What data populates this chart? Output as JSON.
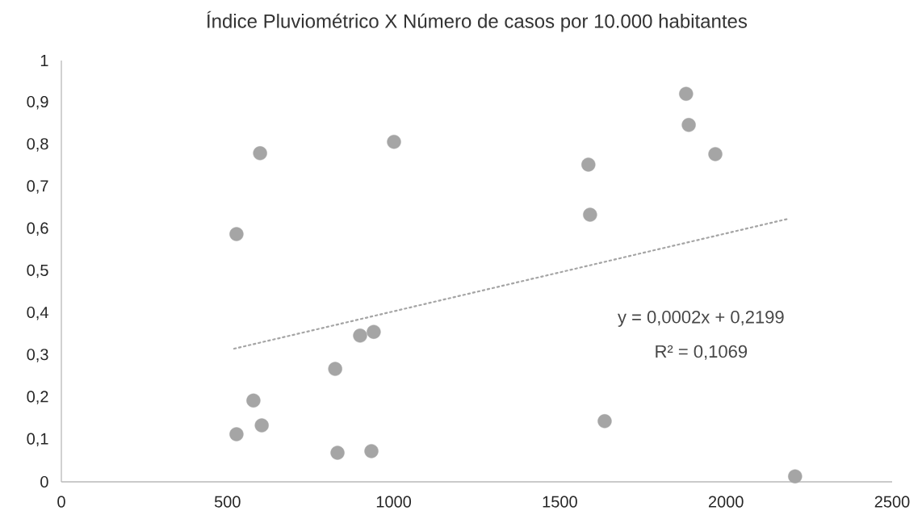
{
  "chart_data": {
    "type": "scatter",
    "title": "Índice Pluviométrico X Número de casos por 10.000 habitantes",
    "xlim": [
      0,
      2500
    ],
    "xticks": [
      0,
      500,
      1000,
      1500,
      2000,
      2500
    ],
    "ylim": [
      0,
      1
    ],
    "yticks": [
      0,
      {
        "value": 0.1,
        "label": "0,1"
      },
      {
        "value": 0.2,
        "label": "0,2"
      },
      {
        "value": 0.3,
        "label": "0,3"
      },
      {
        "value": 0.4,
        "label": "0,4"
      },
      {
        "value": 0.5,
        "label": "0,5"
      },
      {
        "value": 0.6,
        "label": "0,6"
      },
      {
        "value": 0.7,
        "label": "0,7"
      },
      {
        "value": 0.8,
        "label": "0,8"
      },
      {
        "value": 0.9,
        "label": "0,9"
      },
      1
    ],
    "grid": false,
    "series": [
      {
        "marker": "circle",
        "color": "#a5a5a5",
        "x": [
          527,
          527,
          598,
          578,
          603,
          824,
          831,
          899,
          940,
          933,
          1001,
          1586,
          1591,
          1635,
          1880,
          1888,
          1968,
          2208
        ],
        "values": [
          0.113,
          0.588,
          0.78,
          0.193,
          0.134,
          0.268,
          0.069,
          0.347,
          0.356,
          0.073,
          0.807,
          0.753,
          0.634,
          0.144,
          0.921,
          0.847,
          0.778,
          0.013
        ]
      },
      {
        "type": "line",
        "marker": "none",
        "color": "#a5a5a5",
        "line_style": "dotted",
        "x": [
          520,
          2191
        ],
        "values": [
          0.316,
          0.625
        ]
      }
    ],
    "annotations": [
      "y = 0,0002x + 0,2199",
      "R² = 0,1069"
    ]
  }
}
